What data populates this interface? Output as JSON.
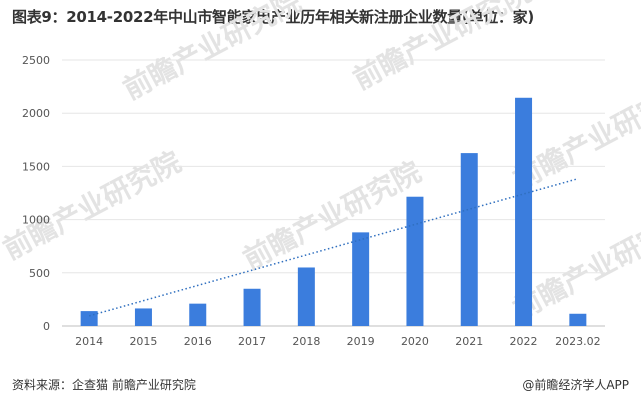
{
  "title": "图表9：2014-2022年中山市智能家电产业历年相关新注册企业数量(单位：家)",
  "footer": {
    "source": "资料来源：企查猫 前瞻产业研究院",
    "credit": "@前瞻经济学人APP"
  },
  "watermark": "前瞻产业研究院",
  "colors": {
    "bar": "#3b7ddd",
    "trendline": "#2f6fbf",
    "grid": "#e6e6e6"
  },
  "chart_data": {
    "type": "bar",
    "categories": [
      "2014",
      "2015",
      "2016",
      "2017",
      "2018",
      "2019",
      "2020",
      "2021",
      "2022",
      "2023.02"
    ],
    "values": [
      140,
      165,
      210,
      350,
      550,
      880,
      1215,
      1625,
      2145,
      115
    ],
    "ylim": [
      0,
      2500
    ],
    "yticks": [
      0,
      500,
      1000,
      1500,
      2000,
      2500
    ],
    "trendline": "linear",
    "grid": true
  }
}
